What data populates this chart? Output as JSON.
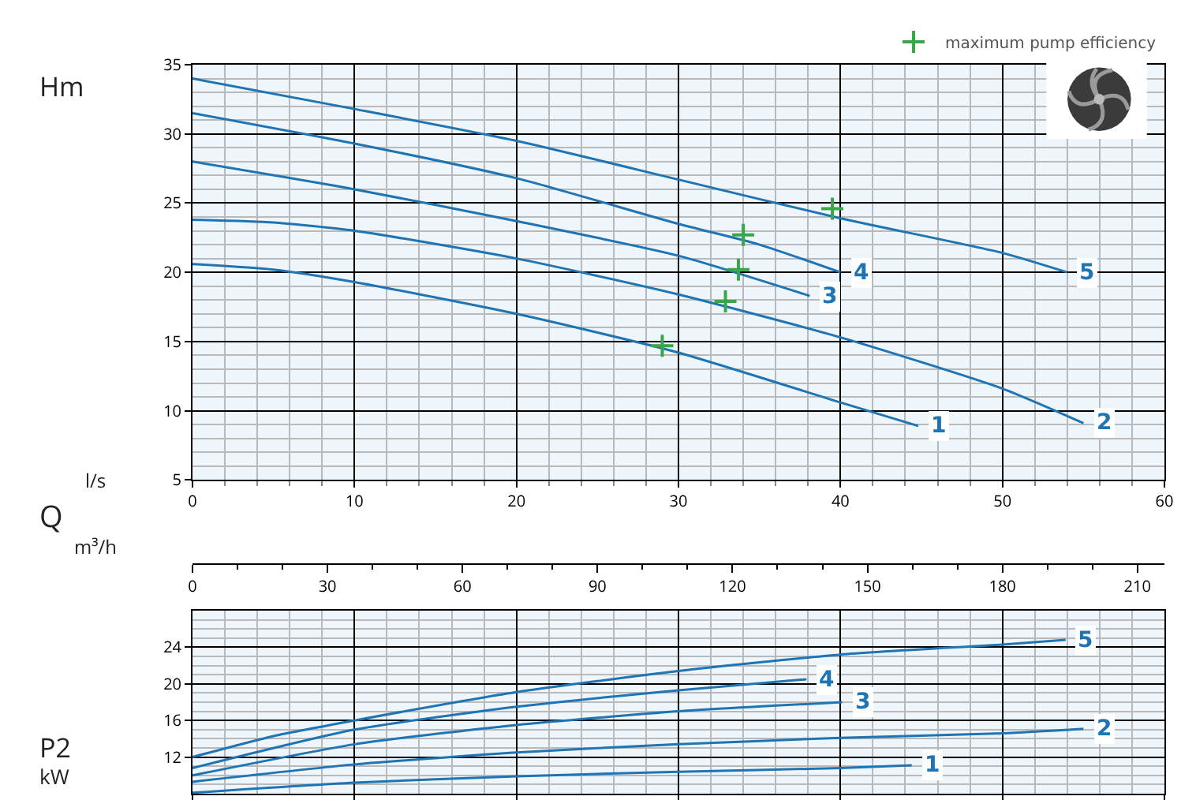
{
  "chart_data": [
    {
      "type": "line",
      "ylabel": "Hm",
      "xlabel": "l/s",
      "x2label": "m³/h",
      "annotations": [
        "Q"
      ],
      "xlim": [
        0,
        60
      ],
      "xticks": [
        0,
        10,
        20,
        30,
        40,
        50,
        60
      ],
      "x2lim": [
        0,
        216
      ],
      "x2ticks": [
        0,
        30,
        60,
        90,
        120,
        150,
        180,
        210
      ],
      "ylim": [
        5,
        35
      ],
      "yticks": [
        5,
        10,
        15,
        20,
        25,
        30,
        35
      ],
      "grid": true,
      "legend": "top right",
      "marker": "none",
      "line_style": "solid",
      "series": [
        {
          "name": "1",
          "color": "#1f74b4",
          "x": [
            0,
            5,
            10,
            20,
            30,
            40,
            44.8
          ],
          "values": [
            20.6,
            20.2,
            19.3,
            17,
            14.2,
            10.6,
            8.9
          ]
        },
        {
          "name": "2",
          "color": "#1f74b4",
          "x": [
            0,
            5,
            10,
            20,
            30,
            40,
            50,
            55
          ],
          "values": [
            23.8,
            23.6,
            23,
            21,
            18.4,
            15.3,
            11.6,
            9.1
          ]
        },
        {
          "name": "3",
          "color": "#1f74b4",
          "x": [
            0,
            10,
            20,
            30,
            38.1
          ],
          "values": [
            28,
            26,
            23.7,
            21.2,
            18.3
          ]
        },
        {
          "name": "4",
          "color": "#1f74b4",
          "x": [
            0,
            10,
            20,
            30,
            35,
            40
          ],
          "values": [
            31.5,
            29.3,
            26.8,
            23.5,
            22,
            20
          ]
        },
        {
          "name": "5",
          "color": "#1f74b4",
          "x": [
            0,
            10,
            20,
            30,
            40,
            50,
            54
          ],
          "values": [
            34,
            31.8,
            29.5,
            26.7,
            23.9,
            21.4,
            20
          ]
        },
        {
          "name": "maximum pump efficiency",
          "type": "scatter",
          "marker": "cross",
          "color": "#3aa64a",
          "x": [
            29,
            32.9,
            33.7,
            34,
            39.5
          ],
          "values": [
            14.7,
            17.9,
            20.2,
            22.7,
            24.6
          ]
        }
      ]
    },
    {
      "type": "line",
      "ylabel": "P2\nkW",
      "xlim": [
        0,
        60
      ],
      "xticks": [
        0,
        10,
        20,
        30,
        40,
        50,
        60
      ],
      "ylim": [
        8,
        28
      ],
      "yticks": [
        12,
        16,
        20,
        24
      ],
      "tick_labels": "y",
      "grid": true,
      "marker": "none",
      "line_style": "solid",
      "series": [
        {
          "name": "1",
          "color": "#1f74b4",
          "x": [
            0,
            10,
            20,
            30,
            40,
            44.4
          ],
          "values": [
            8.1,
            9.2,
            9.9,
            10.4,
            10.8,
            11.1
          ]
        },
        {
          "name": "2",
          "color": "#1f74b4",
          "x": [
            0,
            10,
            20,
            30,
            40,
            50,
            55
          ],
          "values": [
            9.3,
            11.2,
            12.5,
            13.4,
            14.1,
            14.6,
            15.1
          ]
        },
        {
          "name": "3",
          "color": "#1f74b4",
          "x": [
            0,
            10,
            20,
            30,
            40.1
          ],
          "values": [
            10,
            13.4,
            15.5,
            17,
            18
          ]
        },
        {
          "name": "4",
          "color": "#1f74b4",
          "x": [
            0,
            10,
            20,
            30,
            37.9
          ],
          "values": [
            10.8,
            15,
            17.5,
            19.3,
            20.5
          ]
        },
        {
          "name": "5",
          "color": "#1f74b4",
          "x": [
            0,
            5,
            10,
            20,
            30,
            40,
            50,
            53.9
          ],
          "values": [
            12,
            14.3,
            16,
            19.1,
            21.4,
            23.2,
            24.3,
            24.8
          ]
        }
      ]
    }
  ]
}
